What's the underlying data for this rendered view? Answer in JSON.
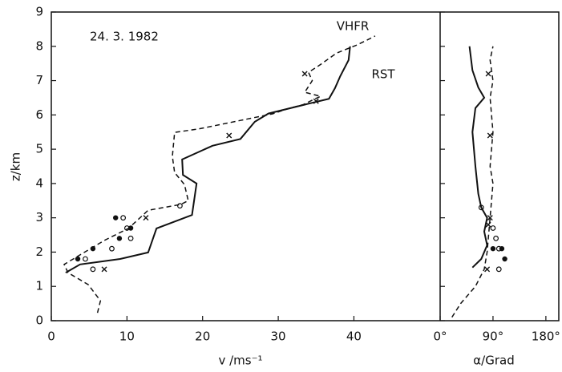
{
  "chart_data": [
    {
      "type": "line",
      "annotation": "24. 3. 1982",
      "y_label": "z/km",
      "x_label": "v /ms⁻¹",
      "xlim": [
        0,
        51.4
      ],
      "xticks": [
        0,
        10,
        20,
        30,
        40
      ],
      "ylim": [
        0,
        9
      ],
      "yticks": [
        0,
        1,
        2,
        3,
        4,
        5,
        6,
        7,
        8,
        9
      ],
      "series": [
        {
          "name": "VHFR",
          "style": "solid",
          "x": [
            1.9,
            3.8,
            9.1,
            12.8,
            13.9,
            18.6,
            19.2,
            17.4,
            17.3,
            21.3,
            25.0,
            26.9,
            28.7,
            33.5,
            36.7,
            37.5,
            38.2,
            39.3,
            39.5
          ],
          "values": [
            1.4,
            1.64,
            1.8,
            1.99,
            2.69,
            3.08,
            4.0,
            4.25,
            4.7,
            5.1,
            5.3,
            5.8,
            6.04,
            6.3,
            6.47,
            6.78,
            7.13,
            7.6,
            8.0
          ]
        },
        {
          "name": "RST",
          "style": "dashed",
          "x": [
            6.1,
            6.5,
            4.9,
            2.2,
            1.7,
            3.8,
            7.0,
            10.2,
            12.8,
            17.1,
            18.1,
            17.6,
            16.3,
            16.0,
            16.3,
            19.7,
            25.0,
            29.2,
            31.4,
            33.3,
            34.5,
            35.6,
            33.5,
            34.5,
            34.0,
            35.6,
            37.7,
            40.4,
            41.9,
            42.8
          ],
          "values": [
            0.23,
            0.58,
            1.05,
            1.4,
            1.64,
            1.92,
            2.34,
            2.69,
            3.22,
            3.39,
            3.5,
            3.97,
            4.32,
            4.79,
            5.49,
            5.6,
            5.84,
            6.03,
            6.19,
            6.3,
            6.43,
            6.54,
            6.66,
            7.0,
            7.24,
            7.47,
            7.8,
            8.04,
            8.2,
            8.3
          ]
        },
        {
          "marker": "dot",
          "x": [
            3.5,
            5.5,
            8.5,
            9.0,
            10.5
          ],
          "values": [
            1.8,
            2.1,
            3.0,
            2.4,
            2.7
          ]
        },
        {
          "marker": "circle",
          "x": [
            4.5,
            5.5,
            8.0,
            9.5,
            10.0,
            10.5,
            17.0
          ],
          "values": [
            1.8,
            1.5,
            2.1,
            3.0,
            2.7,
            2.4,
            3.35
          ]
        },
        {
          "marker": "cross",
          "x": [
            7.0,
            12.5,
            23.5,
            33.5,
            35.0
          ],
          "values": [
            1.5,
            3.0,
            5.4,
            7.2,
            6.4
          ]
        }
      ]
    },
    {
      "type": "line",
      "x_label": "α/Grad",
      "xlim": [
        0,
        202
      ],
      "xticks": [
        {
          "value": 0,
          "label": "0°"
        },
        {
          "value": 90,
          "label": "90°"
        },
        {
          "value": 180,
          "label": "180°"
        }
      ],
      "ylim": [
        0,
        9
      ],
      "yticks": [
        0,
        1,
        2,
        3,
        4,
        5,
        6,
        7,
        8,
        9
      ],
      "series": [
        {
          "style": "solid",
          "x": [
            55,
            70,
            80,
            75,
            80,
            70,
            65,
            60,
            55,
            60,
            75,
            65,
            55,
            50
          ],
          "values": [
            1.55,
            1.8,
            2.2,
            2.6,
            3.0,
            3.3,
            3.7,
            4.5,
            5.5,
            6.2,
            6.5,
            6.8,
            7.3,
            8.0
          ]
        },
        {
          "style": "dashed",
          "x": [
            20,
            35,
            60,
            75,
            80,
            85,
            90,
            85,
            90,
            85,
            90,
            85,
            90
          ],
          "values": [
            0.1,
            0.5,
            1.0,
            1.5,
            2.0,
            3.0,
            4.0,
            4.5,
            5.5,
            6.5,
            7.0,
            7.6,
            8.0
          ]
        },
        {
          "marker": "dot",
          "x": [
            110,
            105,
            90
          ],
          "values": [
            1.8,
            2.1,
            2.1
          ]
        },
        {
          "marker": "circle",
          "x": [
            70,
            95,
            100,
            100,
            90
          ],
          "values": [
            3.3,
            2.4,
            2.1,
            1.5,
            2.7
          ]
        },
        {
          "marker": "cross",
          "x": [
            80,
            82,
            85,
            85,
            82
          ],
          "values": [
            1.5,
            2.8,
            3.0,
            5.4,
            7.2
          ]
        }
      ]
    }
  ]
}
